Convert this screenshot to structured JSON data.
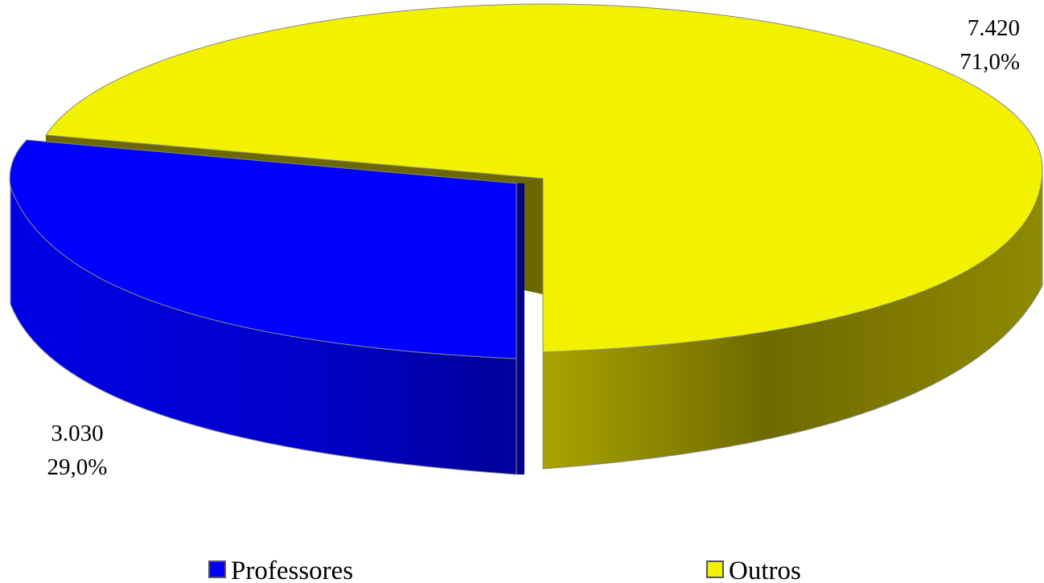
{
  "chart_data": {
    "type": "pie",
    "title": "",
    "slices": [
      {
        "name": "Professores",
        "value": 3030,
        "value_label": "3.030",
        "percent_label": "29,0%",
        "percent": 29.0,
        "color": "#0000FF",
        "exploded": true
      },
      {
        "name": "Outros",
        "value": 7420,
        "value_label": "7.420",
        "percent_label": "71,0%",
        "percent": 71.0,
        "color": "#F2F200",
        "exploded": false
      }
    ],
    "legend": {
      "position": "bottom"
    },
    "style": "3d-exploded"
  }
}
